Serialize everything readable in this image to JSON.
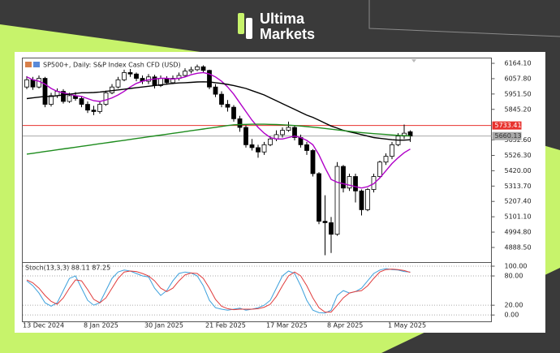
{
  "brand": {
    "line1": "Ultima",
    "line2": "Markets"
  },
  "chart_data": [
    {
      "type": "candlestick",
      "title": "SP500+, Daily: S&P Index Cash CFD (USD)",
      "categories": [
        "13 Dec 2024",
        null,
        null,
        null,
        null,
        null,
        null,
        null,
        null,
        null,
        "8 Jan 2025",
        null,
        null,
        null,
        null,
        null,
        null,
        null,
        null,
        null,
        "30 Jan 2025",
        null,
        null,
        null,
        null,
        null,
        null,
        null,
        null,
        null,
        "21 Feb 2025",
        null,
        null,
        null,
        null,
        null,
        null,
        null,
        null,
        null,
        "17 Mar 2025",
        null,
        null,
        null,
        null,
        null,
        null,
        null,
        null,
        null,
        "8 Apr 2025",
        null,
        null,
        null,
        null,
        null,
        null,
        null,
        null,
        null,
        "1 May 2025",
        null,
        null,
        null
      ],
      "open": [
        6000,
        6050,
        6000,
        6060,
        5880,
        5940,
        5970,
        5900,
        5940,
        5920,
        5880,
        5840,
        5830,
        5880,
        5960,
        6000,
        6050,
        6100,
        6090,
        6060,
        6040,
        6070,
        6010,
        6060,
        6030,
        6060,
        6080,
        6110,
        6120,
        6140,
        6115,
        6000,
        5950,
        5880,
        5860,
        5780,
        5720,
        5600,
        5580,
        5550,
        5600,
        5640,
        5670,
        5700,
        5720,
        5650,
        5600,
        5560,
        5400,
        5070,
        5060,
        4980,
        5450,
        5300,
        5380,
        5280,
        5150,
        5290,
        5380,
        5480,
        5520,
        5600,
        5660,
        5690
      ],
      "high": [
        6075,
        6070,
        6080,
        6070,
        5960,
        5990,
        5985,
        5960,
        5965,
        5935,
        5900,
        5870,
        5900,
        5975,
        6020,
        6070,
        6120,
        6125,
        6100,
        6080,
        6090,
        6085,
        6080,
        6075,
        6080,
        6100,
        6130,
        6140,
        6155,
        6150,
        6120,
        6020,
        5970,
        5910,
        5875,
        5800,
        5735,
        5640,
        5600,
        5620,
        5660,
        5700,
        5720,
        5760,
        5735,
        5670,
        5620,
        5570,
        5410,
        5250,
        5100,
        5480,
        5460,
        5400,
        5400,
        5290,
        5300,
        5400,
        5490,
        5540,
        5620,
        5680,
        5740,
        5700
      ],
      "low": [
        5985,
        5980,
        5990,
        5860,
        5865,
        5925,
        5885,
        5890,
        5905,
        5860,
        5820,
        5805,
        5815,
        5870,
        5950,
        5990,
        6040,
        6070,
        6040,
        6020,
        6020,
        5990,
        6000,
        6015,
        6020,
        6045,
        6070,
        6095,
        6110,
        6100,
        5985,
        5930,
        5860,
        5830,
        5760,
        5690,
        5580,
        5560,
        5510,
        5530,
        5590,
        5625,
        5650,
        5690,
        5630,
        5580,
        5530,
        5380,
        5050,
        4835,
        4850,
        4970,
        5270,
        5280,
        5200,
        5110,
        5140,
        5270,
        5370,
        5460,
        5500,
        5590,
        5640,
        5620
      ],
      "close": [
        6050,
        6000,
        6060,
        5880,
        5940,
        5970,
        5900,
        5940,
        5920,
        5880,
        5840,
        5830,
        5880,
        5960,
        6000,
        6050,
        6100,
        6090,
        6060,
        6040,
        6070,
        6010,
        6060,
        6030,
        6060,
        6080,
        6110,
        6120,
        6140,
        6115,
        6000,
        5950,
        5880,
        5860,
        5780,
        5720,
        5600,
        5580,
        5550,
        5600,
        5640,
        5670,
        5700,
        5720,
        5650,
        5600,
        5560,
        5400,
        5070,
        5060,
        4980,
        5450,
        5300,
        5380,
        5280,
        5150,
        5290,
        5380,
        5480,
        5520,
        5600,
        5660,
        5680,
        5660.13
      ],
      "up_color": "#ffffff",
      "down_color": "#000000",
      "outline_color": "#000000",
      "series": [
        {
          "color": "#b000c8",
          "values": [
            6070,
            6050,
            6040,
            6020,
            5990,
            5970,
            5960,
            5950,
            5940,
            5935,
            5920,
            5905,
            5900,
            5910,
            5925,
            5945,
            5970,
            6000,
            6025,
            6040,
            6050,
            6055,
            6060,
            6060,
            6055,
            6060,
            6070,
            6085,
            6095,
            6100,
            6090,
            6070,
            6040,
            6000,
            5950,
            5890,
            5830,
            5770,
            5720,
            5680,
            5650,
            5640,
            5640,
            5650,
            5660,
            5650,
            5630,
            5600,
            5530,
            5440,
            5360,
            5340,
            5330,
            5320,
            5310,
            5300,
            5310,
            5330,
            5370,
            5420,
            5470,
            5510,
            5545,
            5570
          ]
        },
        {
          "color": "#000000",
          "values": [
            5920,
            5925,
            5930,
            5935,
            5935,
            5940,
            5945,
            5950,
            5955,
            5960,
            5960,
            5962,
            5965,
            5970,
            5975,
            5980,
            5985,
            5990,
            5995,
            6000,
            6005,
            6010,
            6015,
            6020,
            6025,
            6028,
            6030,
            6032,
            6035,
            6036,
            6035,
            6030,
            6025,
            6018,
            6010,
            6000,
            5990,
            5975,
            5960,
            5945,
            5925,
            5905,
            5885,
            5865,
            5845,
            5825,
            5805,
            5790,
            5770,
            5750,
            5730,
            5715,
            5700,
            5690,
            5680,
            5670,
            5660,
            5650,
            5645,
            5640,
            5635,
            5632,
            5632,
            5635
          ]
        },
        {
          "color": "#1e8c1e",
          "values": [
            5535,
            5541,
            5547,
            5553,
            5559,
            5565,
            5571,
            5577,
            5583,
            5589,
            5595,
            5601,
            5607,
            5613,
            5619,
            5625,
            5631,
            5637,
            5643,
            5649,
            5655,
            5661,
            5667,
            5673,
            5679,
            5685,
            5691,
            5697,
            5703,
            5709,
            5715,
            5721,
            5727,
            5733,
            5738,
            5740,
            5741,
            5742,
            5742,
            5742,
            5741,
            5740,
            5738,
            5736,
            5733,
            5730,
            5726,
            5722,
            5718,
            5713,
            5708,
            5703,
            5698,
            5693,
            5688,
            5684,
            5680,
            5677,
            5674,
            5671,
            5668,
            5665,
            5663,
            5661
          ]
        }
      ],
      "price_lines": [
        {
          "value": 5733.41,
          "color": "#e8322e",
          "label_color": "#ffffff"
        },
        {
          "value": 5660.13,
          "color": "#a8a8a8",
          "label_color": "#333333"
        }
      ],
      "ylim": [
        4787,
        6198
      ],
      "yticks": [
        {
          "value": 6164.1,
          "label": "6164.10"
        },
        {
          "value": 6057.8,
          "label": "6057.80"
        },
        {
          "value": 5951.5,
          "label": "5951.50"
        },
        {
          "value": 5845.2,
          "label": "5845.20"
        },
        {
          "value": 5632.6,
          "label": "5632.60"
        },
        {
          "value": 5526.3,
          "label": "5526.30"
        },
        {
          "value": 5420,
          "label": "5420.00"
        },
        {
          "value": 5313.7,
          "label": "5313.70"
        },
        {
          "value": 5207.4,
          "label": "5207.40"
        },
        {
          "value": 5101.1,
          "label": "5101.10"
        },
        {
          "value": 4994.8,
          "label": "4994.80"
        },
        {
          "value": 4888.5,
          "label": "4888.50"
        }
      ],
      "grid": false
    },
    {
      "type": "line",
      "title": "Stoch(13,3,3) 88.11 87.25",
      "series": [
        {
          "color": "#3ca0dc",
          "values": [
            70,
            60,
            45,
            25,
            18,
            25,
            50,
            75,
            80,
            55,
            30,
            20,
            25,
            50,
            75,
            88,
            92,
            90,
            85,
            80,
            78,
            55,
            40,
            50,
            70,
            85,
            88,
            86,
            80,
            60,
            30,
            15,
            12,
            10,
            12,
            14,
            10,
            12,
            15,
            20,
            30,
            55,
            80,
            90,
            85,
            60,
            30,
            10,
            5,
            4,
            10,
            40,
            50,
            45,
            48,
            55,
            70,
            85,
            92,
            95,
            93,
            92,
            89,
            88.11
          ]
        },
        {
          "color": "#e03c3c",
          "values": [
            72,
            66,
            55,
            40,
            28,
            22,
            35,
            55,
            72,
            70,
            52,
            32,
            25,
            35,
            55,
            75,
            88,
            90,
            89,
            85,
            80,
            70,
            55,
            48,
            55,
            70,
            82,
            86,
            85,
            75,
            55,
            32,
            18,
            13,
            11,
            12,
            12,
            12,
            13,
            16,
            22,
            38,
            60,
            80,
            88,
            80,
            60,
            35,
            15,
            6,
            6,
            20,
            35,
            45,
            48,
            50,
            60,
            75,
            88,
            93,
            94,
            93,
            91,
            87.25
          ]
        }
      ],
      "ylim": [
        -13,
        105
      ],
      "yticks": [
        {
          "value": 100,
          "label": "100.00"
        },
        {
          "value": 80,
          "label": "80.00"
        },
        {
          "value": 20,
          "label": "20.00"
        },
        {
          "value": 0,
          "label": "0.00"
        }
      ],
      "grid": true
    }
  ]
}
